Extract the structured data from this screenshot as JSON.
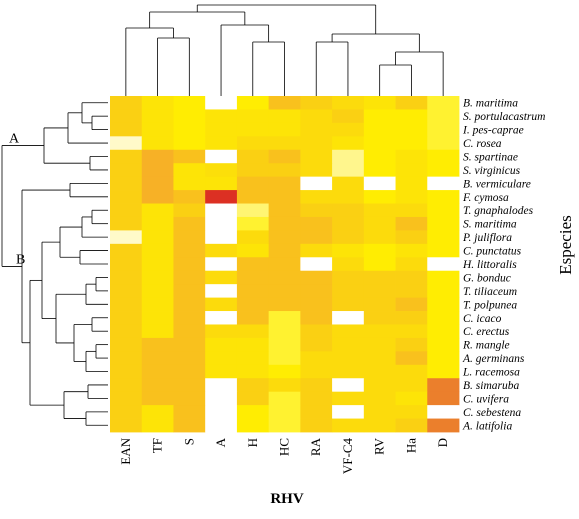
{
  "chart_data": {
    "type": "heatmap",
    "title": "",
    "xlabel": "RHV",
    "ylabel": "Especies",
    "columns": [
      "EAN",
      "TF",
      "S",
      "A",
      "H",
      "HC",
      "RA",
      "VF-C4",
      "RV",
      "Ha",
      "D"
    ],
    "rows": [
      "B. maritima",
      "S. portulacastrum",
      "I. pes-caprae",
      "C. rosea",
      "S. spartinae",
      "S. virginicus",
      "B. vermiculare",
      "F. cymosa",
      "T. gnaphalodes",
      "S. maritima",
      "P. juliflora",
      "C. punctatus",
      "H. littoralis",
      "G. bonduc",
      "T. tiliaceum",
      "T. polpunea",
      "C. icaco",
      "C. erectus",
      "R. mangle",
      "A. germinans",
      "L. racemosa",
      "B. simaruba",
      "C. uvifera",
      "C. sebestena",
      "A. latifolia"
    ],
    "value_scale": {
      "min": 0,
      "max": 1,
      "colors": [
        "#ffffff",
        "#fff9bf",
        "#ffef00",
        "#fbd60f",
        "#f6ab2a",
        "#ee8f2c",
        "#e2502a",
        "#d81f1f"
      ]
    },
    "values": [
      [
        0.45,
        0.35,
        0.3,
        0.0,
        0.3,
        0.5,
        0.45,
        0.4,
        0.35,
        0.45,
        0.25
      ],
      [
        0.45,
        0.35,
        0.3,
        0.35,
        0.35,
        0.35,
        0.4,
        0.45,
        0.3,
        0.3,
        0.25
      ],
      [
        0.45,
        0.35,
        0.3,
        0.35,
        0.35,
        0.35,
        0.4,
        0.4,
        0.3,
        0.3,
        0.25
      ],
      [
        0.12,
        0.35,
        0.3,
        0.35,
        0.4,
        0.4,
        0.4,
        0.35,
        0.3,
        0.3,
        0.25
      ],
      [
        0.45,
        0.55,
        0.5,
        0.0,
        0.45,
        0.5,
        0.4,
        0.18,
        0.3,
        0.35,
        0.3
      ],
      [
        0.45,
        0.55,
        0.35,
        0.38,
        0.45,
        0.45,
        0.4,
        0.18,
        0.3,
        0.35,
        0.3
      ],
      [
        0.45,
        0.55,
        0.35,
        0.35,
        0.5,
        0.5,
        0.0,
        0.4,
        0.0,
        0.35,
        0.0
      ],
      [
        0.45,
        0.55,
        0.5,
        0.95,
        0.5,
        0.5,
        0.4,
        0.4,
        0.3,
        0.35,
        0.3
      ],
      [
        0.45,
        0.35,
        0.45,
        0.0,
        0.2,
        0.5,
        0.45,
        0.45,
        0.4,
        0.4,
        0.3
      ],
      [
        0.45,
        0.35,
        0.5,
        0.0,
        0.25,
        0.5,
        0.5,
        0.45,
        0.4,
        0.5,
        0.3
      ],
      [
        0.12,
        0.35,
        0.5,
        0.0,
        0.4,
        0.5,
        0.5,
        0.45,
        0.4,
        0.45,
        0.3
      ],
      [
        0.45,
        0.35,
        0.5,
        0.4,
        0.35,
        0.5,
        0.4,
        0.35,
        0.3,
        0.35,
        0.3
      ],
      [
        0.45,
        0.35,
        0.5,
        0.0,
        0.5,
        0.5,
        0.0,
        0.4,
        0.3,
        0.4,
        0.0
      ],
      [
        0.45,
        0.35,
        0.5,
        0.4,
        0.5,
        0.5,
        0.5,
        0.45,
        0.45,
        0.45,
        0.3
      ],
      [
        0.45,
        0.35,
        0.5,
        0.0,
        0.5,
        0.5,
        0.5,
        0.45,
        0.45,
        0.45,
        0.3
      ],
      [
        0.45,
        0.35,
        0.5,
        0.4,
        0.5,
        0.5,
        0.5,
        0.45,
        0.45,
        0.5,
        0.3
      ],
      [
        0.45,
        0.35,
        0.5,
        0.0,
        0.5,
        0.25,
        0.5,
        0.0,
        0.45,
        0.45,
        0.3
      ],
      [
        0.45,
        0.35,
        0.5,
        0.4,
        0.4,
        0.25,
        0.45,
        0.4,
        0.4,
        0.4,
        0.3
      ],
      [
        0.45,
        0.5,
        0.5,
        0.35,
        0.35,
        0.25,
        0.45,
        0.4,
        0.4,
        0.45,
        0.3
      ],
      [
        0.45,
        0.5,
        0.5,
        0.35,
        0.35,
        0.25,
        0.4,
        0.4,
        0.4,
        0.5,
        0.3
      ],
      [
        0.45,
        0.5,
        0.5,
        0.35,
        0.35,
        0.3,
        0.4,
        0.4,
        0.4,
        0.4,
        0.3
      ],
      [
        0.45,
        0.5,
        0.5,
        0.0,
        0.45,
        0.4,
        0.45,
        0.0,
        0.4,
        0.4,
        0.75
      ],
      [
        0.45,
        0.5,
        0.5,
        0.0,
        0.45,
        0.25,
        0.45,
        0.4,
        0.4,
        0.35,
        0.75
      ],
      [
        0.45,
        0.35,
        0.5,
        0.0,
        0.3,
        0.25,
        0.45,
        0.0,
        0.4,
        0.4,
        0.0
      ],
      [
        0.45,
        0.35,
        0.5,
        0.0,
        0.3,
        0.25,
        0.45,
        0.4,
        0.4,
        0.45,
        0.75
      ]
    ],
    "row_clusters": [
      {
        "label": "A",
        "rows": [
          "B. maritima",
          "S. portulacastrum",
          "I. pes-caprae",
          "C. rosea",
          "S. spartinae",
          "S. virginicus"
        ]
      },
      {
        "label": "B",
        "rows": [
          "B. vermiculare",
          "F. cymosa",
          "T. gnaphalodes",
          "S. maritima",
          "P. juliflora",
          "C. punctatus",
          "H. littoralis",
          "G. bonduc",
          "T. tiliaceum",
          "T. polpunea",
          "C. icaco",
          "C. erectus",
          "R. mangle",
          "A. germinans",
          "L. racemosa",
          "B. simaruba",
          "C. uvifera",
          "C. sebestena",
          "A. latifolia"
        ]
      }
    ],
    "column_dendrogram": {
      "groups": [
        [
          "EAN",
          "TF",
          "S"
        ],
        [
          "A",
          "H",
          "HC"
        ],
        [
          "RA",
          "VF-C4",
          "RV",
          "Ha",
          "D"
        ]
      ]
    },
    "legend": "none"
  }
}
